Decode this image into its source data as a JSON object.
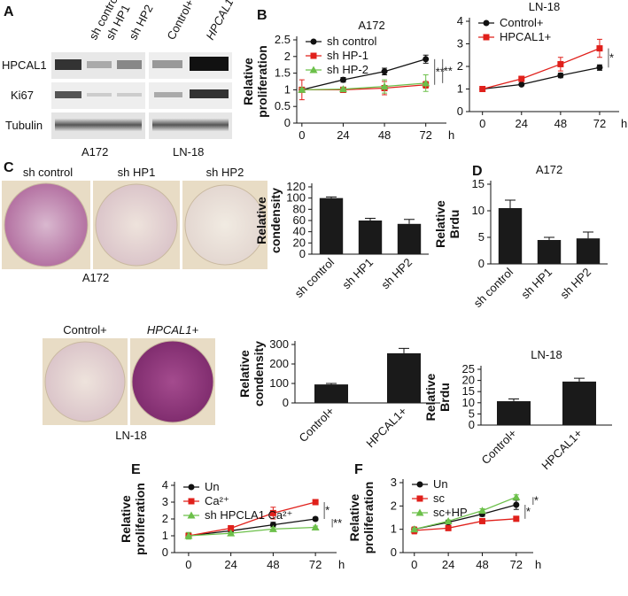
{
  "panel_labels": [
    "A",
    "B",
    "C",
    "D",
    "E",
    "F"
  ],
  "blot": {
    "columns": [
      "sh control",
      "sh HP1",
      "sh HP2",
      "Control+",
      "HPCAL1+"
    ],
    "rows": [
      "HPCAL1",
      "Ki67",
      "Tubulin"
    ],
    "groups": [
      "A172",
      "LN-18"
    ]
  },
  "wells": {
    "top": {
      "labels": [
        "sh control",
        "sh HP1",
        "sh HP2"
      ],
      "group": "A172"
    },
    "bottom": {
      "labels": [
        "Control+",
        "HPCAL1+"
      ],
      "group": "LN-18"
    }
  },
  "chart_data": [
    {
      "type": "line",
      "title": "A172",
      "y_label": "Relative proliferation",
      "x_unit": "h",
      "x": [
        0,
        24,
        48,
        72
      ],
      "xlim": [
        -3,
        84
      ],
      "xticks": [
        0,
        24,
        48,
        72
      ],
      "ylim": [
        0,
        2.5
      ],
      "yticks": [
        0,
        0.5,
        1,
        1.5,
        2,
        2.5
      ],
      "annotations": [
        "**",
        "**"
      ],
      "series": [
        {
          "name": "sh control",
          "color": "#111111",
          "marker": "circle",
          "values": [
            1,
            1.3,
            1.55,
            1.92
          ],
          "errors": [
            0.05,
            0.07,
            0.1,
            0.12
          ]
        },
        {
          "name": "sh HP-1",
          "color": "#e0201b",
          "marker": "square",
          "values": [
            1,
            1,
            1.05,
            1.15
          ],
          "errors": [
            0.3,
            0.08,
            0.2,
            0.1
          ]
        },
        {
          "name": "sh HP-2",
          "color": "#6cc04a",
          "marker": "triangle",
          "values": [
            1,
            1.02,
            1.1,
            1.2
          ],
          "errors": [
            0.05,
            0.05,
            0.2,
            0.25
          ]
        }
      ]
    },
    {
      "type": "line",
      "title": "LN-18",
      "y_label": "",
      "x_unit": "h",
      "x": [
        0,
        24,
        48,
        72
      ],
      "xlim": [
        -8,
        84
      ],
      "xticks": [
        0,
        24,
        48,
        72
      ],
      "ylim": [
        0,
        4
      ],
      "yticks": [
        0,
        1,
        2,
        3,
        4
      ],
      "annotations": [
        "*"
      ],
      "series": [
        {
          "name": "Control+",
          "color": "#111111",
          "marker": "circle",
          "values": [
            1,
            1.2,
            1.6,
            1.95
          ],
          "errors": [
            0.08,
            0.05,
            0.1,
            0.12
          ]
        },
        {
          "name": "HPCAL1+",
          "color": "#e0201b",
          "marker": "square",
          "values": [
            1,
            1.45,
            2.1,
            2.8
          ],
          "errors": [
            0.05,
            0.05,
            0.3,
            0.4
          ]
        }
      ]
    },
    {
      "type": "bar",
      "y_label": "Relative condensity",
      "categories": [
        "sh control",
        "sh HP1",
        "sh HP2"
      ],
      "values": [
        100,
        60,
        54
      ],
      "errors": [
        2,
        4,
        8
      ],
      "color": "#1a1a1a",
      "ylim": [
        0,
        120
      ],
      "yticks": [
        0,
        20,
        40,
        60,
        80,
        100,
        120
      ]
    },
    {
      "type": "bar",
      "y_label": "Relative condensity",
      "categories": [
        "Control+",
        "HPCAL1+"
      ],
      "values": [
        95,
        255
      ],
      "errors": [
        5,
        25
      ],
      "color": "#1a1a1a",
      "ylim": [
        0,
        300
      ],
      "yticks": [
        0,
        100,
        200,
        300
      ]
    },
    {
      "type": "bar",
      "title": "A172",
      "y_label": "Relative Brdu",
      "categories": [
        "sh control",
        "sh HP1",
        "sh HP2"
      ],
      "values": [
        10.5,
        4.5,
        4.8
      ],
      "errors": [
        1.5,
        0.5,
        1.2
      ],
      "color": "#1a1a1a",
      "ylim": [
        0,
        15
      ],
      "yticks": [
        0,
        5,
        10,
        15
      ]
    },
    {
      "type": "bar",
      "title": "LN-18",
      "y_label": "Relative Brdu",
      "categories": [
        "Control+",
        "HPCAL1+"
      ],
      "values": [
        10.7,
        19.5
      ],
      "errors": [
        1,
        1.5
      ],
      "color": "#1a1a1a",
      "ylim": [
        0,
        25
      ],
      "yticks": [
        0,
        5,
        10,
        15,
        20,
        25
      ]
    },
    {
      "type": "line",
      "y_label": "Relative proliferation",
      "x_unit": "h",
      "x": [
        0,
        24,
        48,
        72
      ],
      "xlim": [
        -8,
        84
      ],
      "xticks": [
        0,
        24,
        48,
        72
      ],
      "ylim": [
        0,
        4
      ],
      "yticks": [
        0,
        1,
        2,
        3,
        4
      ],
      "annotations": [
        "*",
        "**"
      ],
      "series": [
        {
          "name": "Un",
          "color": "#111111",
          "marker": "circle",
          "values": [
            1,
            1.3,
            1.65,
            2
          ],
          "errors": [
            0.1,
            0.08,
            0.15,
            0.1
          ]
        },
        {
          "name": "Ca²⁺",
          "color": "#e0201b",
          "marker": "square",
          "values": [
            1,
            1.45,
            2.35,
            3
          ],
          "errors": [
            0.15,
            0.08,
            0.35,
            0.12
          ]
        },
        {
          "name": "sh HPCLA1 Ca²⁺",
          "color": "#6cc04a",
          "marker": "triangle",
          "values": [
            1,
            1.15,
            1.4,
            1.5
          ],
          "errors": [
            0.2,
            0.05,
            0.1,
            0.08
          ]
        }
      ]
    },
    {
      "type": "line",
      "y_label": "Relative proliferation",
      "x_unit": "h",
      "x": [
        0,
        24,
        48,
        72
      ],
      "xlim": [
        -8,
        84
      ],
      "xticks": [
        0,
        24,
        48,
        72
      ],
      "ylim": [
        0,
        3
      ],
      "yticks": [
        0,
        1,
        2,
        3
      ],
      "annotations": [
        "*",
        "*"
      ],
      "series": [
        {
          "name": "Un",
          "color": "#111111",
          "marker": "circle",
          "values": [
            1,
            1.3,
            1.65,
            2.05
          ],
          "errors": [
            0.08,
            0.08,
            0.1,
            0.2
          ]
        },
        {
          "name": "sc",
          "color": "#e0201b",
          "marker": "square",
          "values": [
            0.95,
            1.05,
            1.35,
            1.45
          ],
          "errors": [
            0.15,
            0.05,
            0.05,
            0.05
          ]
        },
        {
          "name": "sc+HP",
          "color": "#6cc04a",
          "marker": "triangle",
          "values": [
            1,
            1.35,
            1.8,
            2.38
          ],
          "errors": [
            0.05,
            0.05,
            0.08,
            0.1
          ]
        }
      ]
    }
  ]
}
